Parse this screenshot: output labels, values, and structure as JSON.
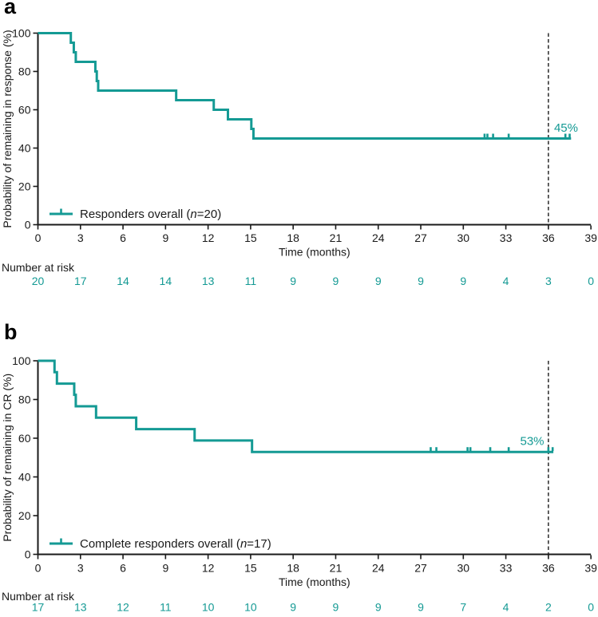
{
  "figure": {
    "accent_color": "#149a94",
    "axis_color": "#1a1a1a",
    "panels": [
      {
        "letter": "a"
      },
      {
        "letter": "b"
      }
    ]
  },
  "chart_data": [
    {
      "type": "line",
      "subtype": "kaplan_meier_step",
      "panel": "a",
      "title": "",
      "xlabel": "Time (months)",
      "ylabel": "Probability of remaining in response (%)",
      "xlim": [
        0,
        39
      ],
      "ylim": [
        0,
        100
      ],
      "grid": false,
      "xticks": [
        0,
        3,
        6,
        9,
        12,
        15,
        18,
        21,
        24,
        27,
        30,
        33,
        36,
        39
      ],
      "yticks": [
        0,
        20,
        40,
        60,
        80,
        100
      ],
      "legend": {
        "name": "Responders overall (n=20)",
        "prefix": "Responders overall (",
        "italic": "n",
        "suffix": "=20)",
        "position": "lower-left"
      },
      "series": [
        {
          "name": "Responders overall (n=20)",
          "steps": [
            [
              0,
              100
            ],
            [
              2.32,
              95
            ],
            [
              2.53,
              90
            ],
            [
              2.67,
              85
            ],
            [
              4.05,
              80
            ],
            [
              4.15,
              75
            ],
            [
              4.25,
              70
            ],
            [
              9.75,
              65
            ],
            [
              12.4,
              60
            ],
            [
              13.4,
              55
            ],
            [
              15.05,
              50
            ],
            [
              15.2,
              45
            ]
          ],
          "end_x": 37.6,
          "censor_x": [
            31.5,
            31.7,
            32.1,
            33.2,
            37.2,
            37.5
          ],
          "censor_level": 45
        }
      ],
      "reference_line_x": 36,
      "annotation": {
        "text": "45%",
        "x_month": 36.4,
        "anchor": "start"
      },
      "number_at_risk": {
        "label": "Number at risk",
        "values": [
          "20",
          "17",
          "14",
          "14",
          "13",
          "11",
          "9",
          "9",
          "9",
          "9",
          "9",
          "4",
          "3",
          "0"
        ]
      }
    },
    {
      "type": "line",
      "subtype": "kaplan_meier_step",
      "panel": "b",
      "title": "",
      "xlabel": "Time (months)",
      "ylabel": "Probability of remaining in CR (%)",
      "xlim": [
        0,
        39
      ],
      "ylim": [
        0,
        100
      ],
      "grid": false,
      "xticks": [
        0,
        3,
        6,
        9,
        12,
        15,
        18,
        21,
        24,
        27,
        30,
        33,
        36,
        39
      ],
      "yticks": [
        0,
        20,
        40,
        60,
        80,
        100
      ],
      "legend": {
        "name": "Complete responders overall (n=17)",
        "prefix": "Complete responders overall (",
        "italic": "n",
        "suffix": "=17)",
        "position": "lower-left"
      },
      "series": [
        {
          "name": "Complete responders overall (n=17)",
          "steps": [
            [
              0,
              100
            ],
            [
              1.17,
              94.1
            ],
            [
              1.34,
              88.2
            ],
            [
              2.56,
              82.4
            ],
            [
              2.67,
              76.5
            ],
            [
              4.1,
              70.6
            ],
            [
              6.93,
              64.7
            ],
            [
              11.05,
              58.8
            ],
            [
              15.1,
              52.9
            ]
          ],
          "end_x": 36.35,
          "censor_x": [
            27.7,
            28.1,
            30.3,
            30.5,
            31.9,
            33.2,
            36.0,
            36.3
          ],
          "censor_level": 52.9
        }
      ],
      "reference_line_x": 36,
      "annotation": {
        "text": "53%",
        "x_month": 35.7,
        "anchor": "end"
      },
      "number_at_risk": {
        "label": "Number at risk",
        "values": [
          "17",
          "13",
          "12",
          "11",
          "10",
          "10",
          "9",
          "9",
          "9",
          "9",
          "7",
          "4",
          "2",
          "0"
        ]
      }
    }
  ]
}
